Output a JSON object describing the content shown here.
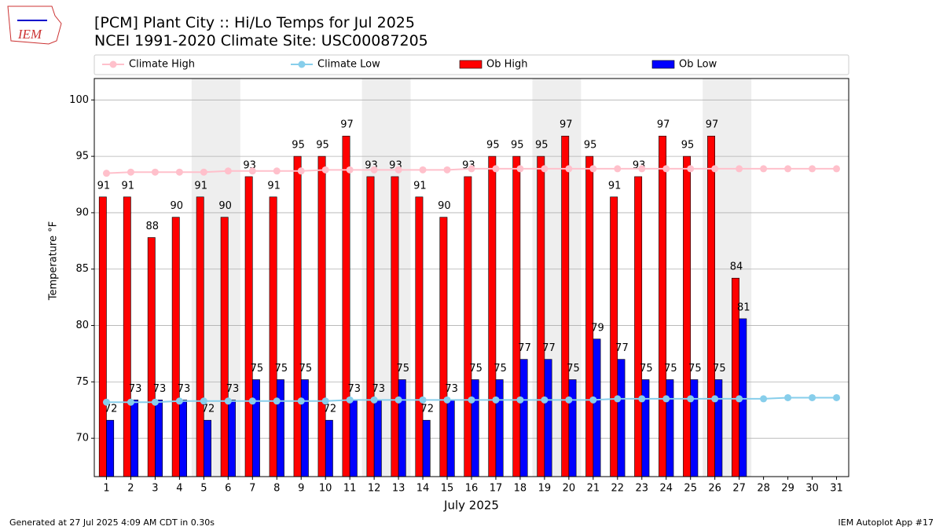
{
  "chart_data": {
    "type": "bar",
    "logo_text": "IEM",
    "title": "[PCM] Plant City :: Hi/Lo Temps for Jul 2025",
    "subtitle": "NCEI 1991-2020 Climate Site: USC00087205",
    "x_label": "July 2025",
    "y_label": "Temperature °F",
    "footer_left": "Generated at 27 Jul 2025 4:09 AM CDT in 0.30s",
    "footer_right": "IEM Autoplot App #17",
    "x": [
      1,
      2,
      3,
      4,
      5,
      6,
      7,
      8,
      9,
      10,
      11,
      12,
      13,
      14,
      15,
      16,
      17,
      18,
      19,
      20,
      21,
      22,
      23,
      24,
      25,
      26,
      27,
      28,
      29,
      30,
      31
    ],
    "xlim": [
      0.5,
      31.5
    ],
    "ylim": [
      66.6,
      101.9
    ],
    "yticks": [
      70,
      75,
      80,
      85,
      90,
      95,
      100
    ],
    "grid": true,
    "shaded": [
      [
        5,
        6
      ],
      [
        12,
        13
      ],
      [
        19,
        20
      ],
      [
        26,
        27
      ]
    ],
    "series": [
      {
        "name": "Climate High",
        "type": "line",
        "color": "#ffc0cb",
        "values": [
          93.5,
          93.6,
          93.6,
          93.6,
          93.6,
          93.7,
          93.7,
          93.7,
          93.7,
          93.8,
          93.8,
          93.8,
          93.8,
          93.8,
          93.8,
          93.9,
          93.9,
          93.9,
          93.9,
          93.9,
          93.9,
          93.9,
          93.9,
          93.9,
          93.9,
          93.9,
          93.9,
          93.9,
          93.9,
          93.9,
          93.9
        ]
      },
      {
        "name": "Climate Low",
        "type": "line",
        "color": "#87ceeb",
        "values": [
          73.2,
          73.2,
          73.2,
          73.3,
          73.3,
          73.3,
          73.3,
          73.3,
          73.3,
          73.3,
          73.4,
          73.4,
          73.4,
          73.4,
          73.4,
          73.4,
          73.4,
          73.4,
          73.4,
          73.4,
          73.4,
          73.5,
          73.5,
          73.5,
          73.5,
          73.5,
          73.5,
          73.5,
          73.6,
          73.6,
          73.6
        ]
      },
      {
        "name": "Ob High",
        "type": "bar",
        "color": "#ff0000",
        "values": [
          91.4,
          91.4,
          87.8,
          89.6,
          91.4,
          89.6,
          93.2,
          91.4,
          95.0,
          95.0,
          96.8,
          93.2,
          93.2,
          91.4,
          89.6,
          93.2,
          95.0,
          95.0,
          95.0,
          96.8,
          95.0,
          91.4,
          93.2,
          96.8,
          95.0,
          96.8,
          84.2,
          null,
          null,
          null,
          null
        ],
        "value_labels": [
          "91",
          "91",
          "88",
          "90",
          "91",
          "90",
          "93",
          "91",
          "95",
          "95",
          "97",
          "93",
          "93",
          "91",
          "90",
          "93",
          "95",
          "95",
          "95",
          "97",
          "95",
          "91",
          "93",
          "97",
          "95",
          "97",
          "84",
          null,
          null,
          null,
          null
        ]
      },
      {
        "name": "Ob Low",
        "type": "bar",
        "color": "#0000ff",
        "values": [
          71.6,
          73.4,
          73.4,
          73.4,
          71.6,
          73.4,
          75.2,
          75.2,
          75.2,
          71.6,
          73.4,
          73.4,
          75.2,
          71.6,
          73.4,
          75.2,
          75.2,
          77.0,
          77.0,
          75.2,
          78.8,
          77.0,
          75.2,
          75.2,
          75.2,
          75.2,
          80.6,
          null,
          null,
          null,
          null
        ],
        "value_labels": [
          "72",
          "73",
          "73",
          "73",
          "72",
          "73",
          "75",
          "75",
          "75",
          "72",
          "73",
          "73",
          "75",
          "72",
          "73",
          "75",
          "75",
          "77",
          "77",
          "75",
          "79",
          "77",
          "75",
          "75",
          "75",
          "75",
          "81",
          null,
          null,
          null,
          null
        ]
      }
    ]
  }
}
